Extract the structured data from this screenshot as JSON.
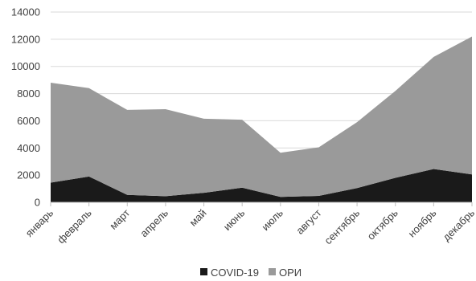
{
  "chart_data": {
    "type": "area",
    "stacked": true,
    "categories": [
      "январь",
      "февраль",
      "март",
      "апрель",
      "май",
      "июнь",
      "июль",
      "август",
      "сентябрь",
      "октябрь",
      "ноябрь",
      "декабрь"
    ],
    "series": [
      {
        "name": "COVID-19",
        "color": "#1a1a1a",
        "values": [
          1450,
          1900,
          550,
          450,
          700,
          1080,
          400,
          470,
          1050,
          1800,
          2450,
          2050
        ]
      },
      {
        "name": "ОРИ",
        "color": "#9a9a9a",
        "values": [
          7350,
          6500,
          6250,
          6400,
          5450,
          5000,
          3250,
          3580,
          4850,
          6400,
          8250,
          10150
        ]
      }
    ],
    "ylim": [
      0,
      14000
    ],
    "yticks": [
      "0",
      "2000",
      "4000",
      "6000",
      "8000",
      "10000",
      "12000",
      "14000"
    ],
    "grid": true,
    "legend": "bottom"
  }
}
